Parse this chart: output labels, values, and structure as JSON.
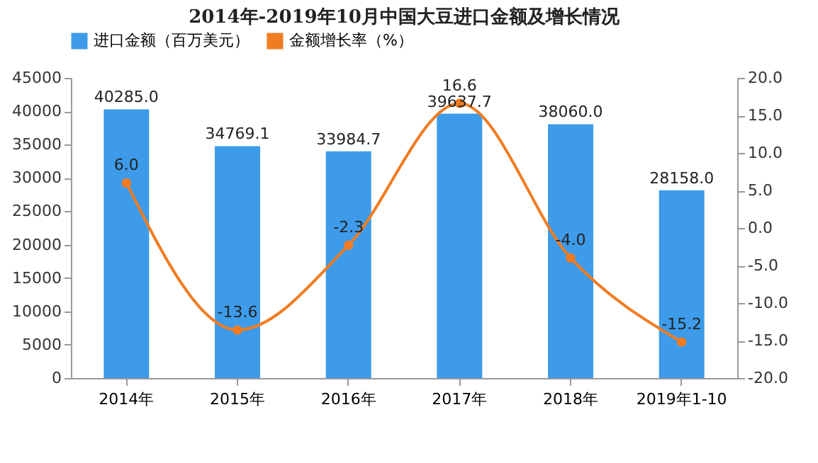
{
  "chart_data": {
    "type": "bar",
    "title": "2014年-2019年10月中国大豆进口金额及增长情况",
    "categories": [
      "2014年",
      "2015年",
      "2016年",
      "2017年",
      "2018年",
      "2019年1-10"
    ],
    "series": [
      {
        "name": "进口金额（百万美元）",
        "color": "#3d9be9",
        "values": [
          40285.0,
          34769.1,
          33984.7,
          39637.7,
          38060.0,
          28158.0
        ],
        "value_labels": [
          "40285.0",
          "34769.1",
          "33984.7",
          "39637.7",
          "38060.0",
          "28158.0"
        ]
      },
      {
        "name": "金额增长率（%）",
        "type": "line",
        "axis": "y2",
        "color": "#f07c22",
        "values": [
          6.0,
          -13.6,
          -2.3,
          16.6,
          -4.0,
          -15.2
        ],
        "value_labels": [
          "6.0",
          "-13.6",
          "-2.3",
          "16.6",
          "-4.0",
          "-15.2"
        ]
      }
    ],
    "ylim": [
      0,
      45000
    ],
    "yticks": [
      0,
      5000,
      10000,
      15000,
      20000,
      25000,
      30000,
      35000,
      40000,
      45000
    ],
    "y2lim": [
      -20,
      20
    ],
    "y2ticks": [
      {
        "value": -20,
        "label": "-20.0"
      },
      {
        "value": -15,
        "label": "-15.0"
      },
      {
        "value": -10,
        "label": "-10.0"
      },
      {
        "value": -5,
        "label": "-5.0"
      },
      {
        "value": 0,
        "label": "0.0"
      },
      {
        "value": 5,
        "label": "5.0"
      },
      {
        "value": 10,
        "label": "10.0"
      },
      {
        "value": 15,
        "label": "15.0"
      },
      {
        "value": 20,
        "label": "20.0"
      }
    ],
    "legend": "top",
    "marker": "circle",
    "line_style": "solid",
    "grid": false
  }
}
